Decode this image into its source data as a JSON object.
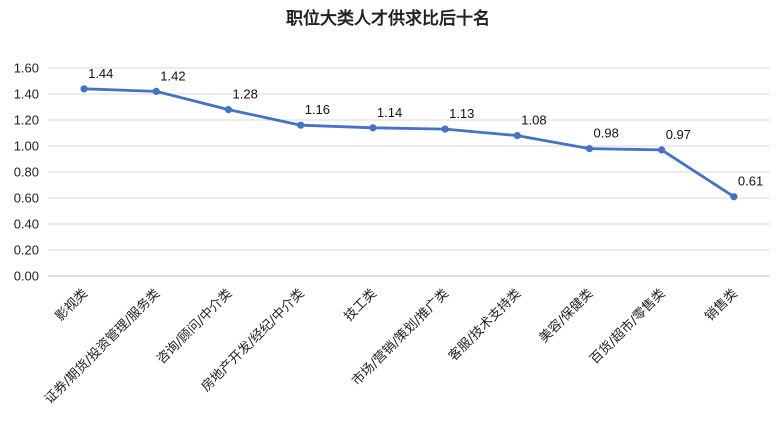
{
  "chart_data": {
    "type": "line",
    "title": "职位大类人才供求比后十名",
    "xlabel": "",
    "ylabel": "",
    "categories": [
      "影视类",
      "证券/期货/投资管理/服务类",
      "咨询/顾问/中介类",
      "房地产开发/经纪/中介类",
      "技工类",
      "市场/营销/策划/推广类",
      "客服/技术支持类",
      "美容/保健类",
      "百货/超市/零售类",
      "销售类"
    ],
    "series": [
      {
        "values": [
          1.44,
          1.42,
          1.28,
          1.16,
          1.14,
          1.13,
          1.08,
          0.98,
          0.97,
          0.61
        ]
      }
    ],
    "data_labels": [
      "1.44",
      "1.42",
      "1.28",
      "1.16",
      "1.14",
      "1.13",
      "1.08",
      "0.98",
      "0.97",
      "0.61"
    ],
    "ylim": [
      0,
      1.6
    ],
    "yticks": [
      "0.00",
      "0.20",
      "0.40",
      "0.60",
      "0.80",
      "1.00",
      "1.20",
      "1.40",
      "1.60"
    ],
    "grid": true,
    "legend": "none",
    "colors": {
      "line": "#4472C4",
      "grid": "#d9d9d9",
      "text": "#222222"
    }
  }
}
